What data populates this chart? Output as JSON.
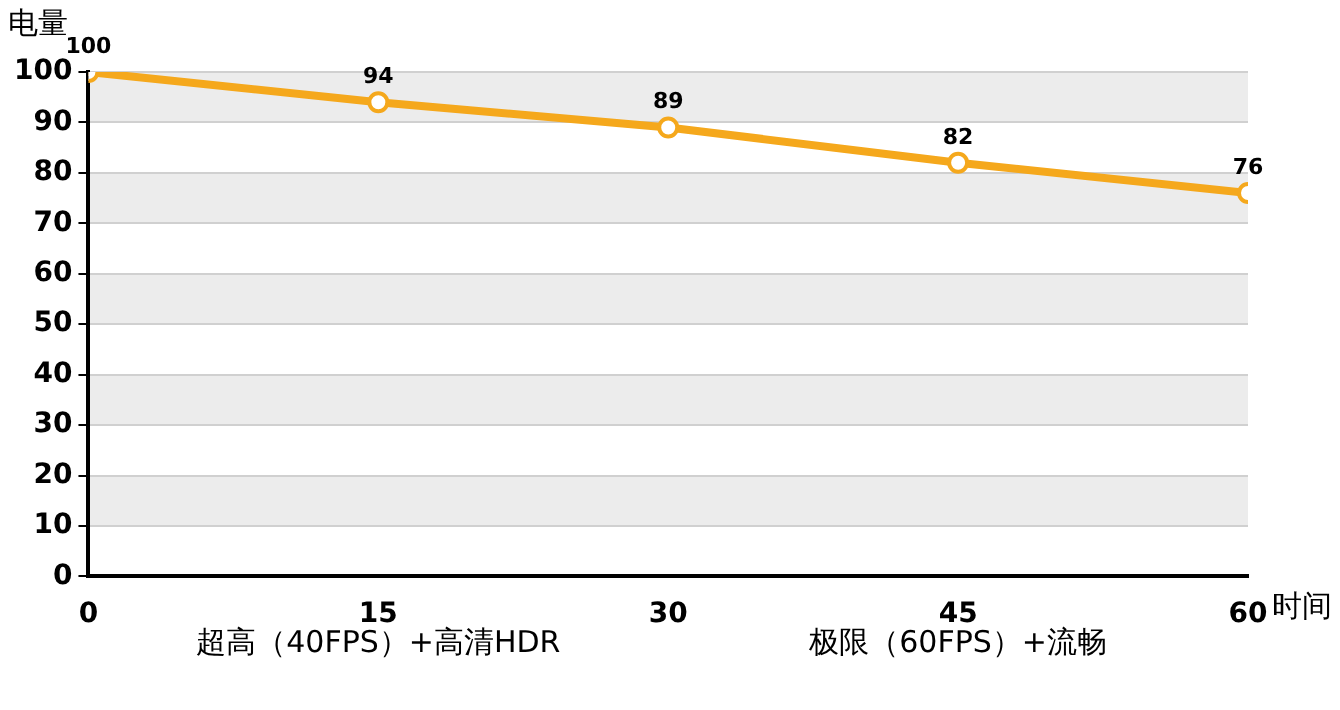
{
  "chart_data": {
    "type": "line",
    "xlabel": "时间",
    "ylabel": "电量",
    "x": [
      0,
      15,
      30,
      45,
      60
    ],
    "series": [
      {
        "color": "#f5a81c",
        "values": [
          100,
          94,
          89,
          82,
          76
        ]
      }
    ],
    "xlim": [
      0,
      60
    ],
    "xticks": [
      0,
      15,
      30,
      45,
      60
    ],
    "ylim": [
      0,
      100
    ],
    "yticks": [
      0,
      10,
      20,
      30,
      40,
      50,
      60,
      70,
      80,
      90,
      100
    ],
    "grid": "y",
    "legend": false,
    "marker": "circle",
    "line_style": "solid",
    "data_labels": true,
    "annotations": [
      "超高（40FPS）+高清HDR",
      "极限（60FPS）+流畅"
    ]
  }
}
